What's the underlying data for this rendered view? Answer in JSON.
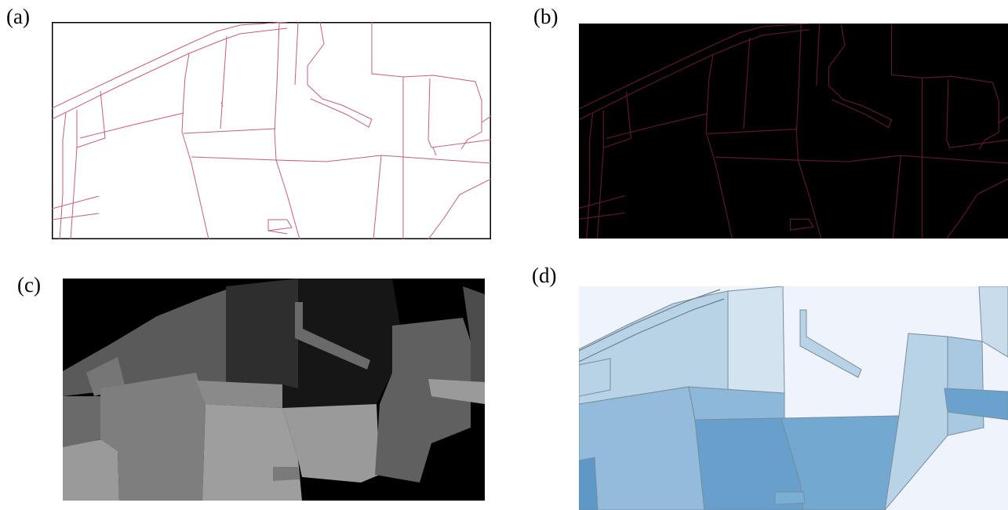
{
  "labels": {
    "a": "(a)",
    "b": "(b)",
    "c": "(c)",
    "d": "(d)"
  },
  "colors": {
    "vector_line": "#c4607a",
    "dark_line": "#5a1a2c",
    "dark_bg": "#000000",
    "gray_dark": "#1c1c1c",
    "gray_light": "#a0a0a0",
    "blue_light": "#eef4fa",
    "blue_dark": "#5f9ccb"
  }
}
